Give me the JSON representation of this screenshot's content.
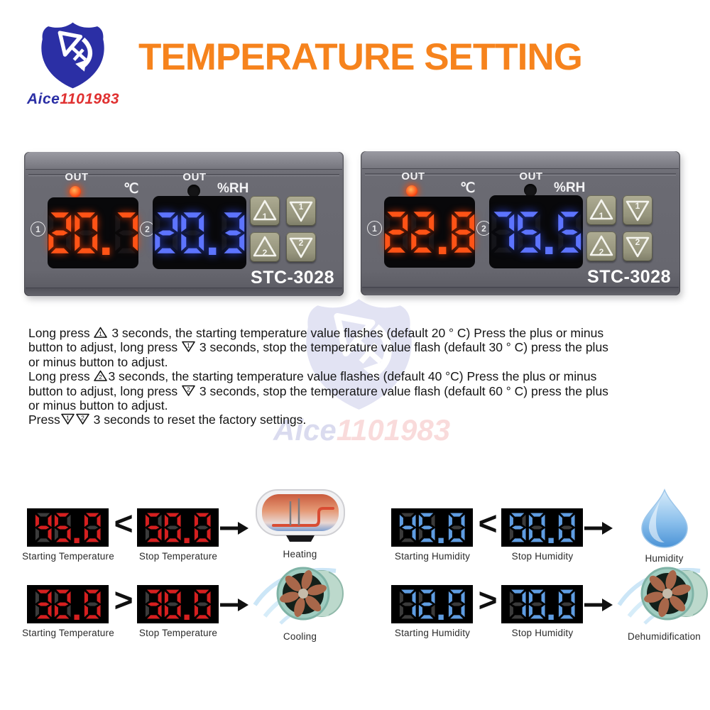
{
  "brand": {
    "name_blue": "Aice",
    "name_red": "1101983"
  },
  "title": "TEMPERATURE SETTING",
  "devices": [
    {
      "out1": "OUT",
      "out2": "OUT",
      "celsius": "℃",
      "rh": "%RH",
      "ch1": "1",
      "ch2": "2",
      "temperature": "20.7",
      "humidity": "20.3",
      "model": "STC-3028",
      "buttons": [
        {
          "dir": "up",
          "num": "1"
        },
        {
          "dir": "down",
          "num": "1"
        },
        {
          "dir": "up",
          "num": "2"
        },
        {
          "dir": "down",
          "num": "2"
        }
      ]
    },
    {
      "out1": "OUT",
      "out2": "OUT",
      "celsius": "℃",
      "rh": "%RH",
      "ch1": "1",
      "ch2": "2",
      "temperature": "22.8",
      "humidity": "75.5",
      "model": "STC-3028",
      "buttons": [
        {
          "dir": "up",
          "num": "1"
        },
        {
          "dir": "down",
          "num": "1"
        },
        {
          "dir": "up",
          "num": "2"
        },
        {
          "dir": "down",
          "num": "2"
        }
      ]
    }
  ],
  "instructions": {
    "lines": [
      "Long press [u1] 3 seconds, the starting temperature value flashes (default 20 ° C) Press the plus or minus",
      "button to adjust, long press [d1] 3 seconds, stop the temperature value flash (default 30 ° C) press the plus",
      "or minus button to adjust.",
      "Long press [u2]3 seconds, the starting temperature value flashes (default 40 °C) Press the plus or minus",
      "button to adjust, long press [d2] 3 seconds, stop the temperature value flash (default 60 ° C) press the plus",
      "or minus button to adjust.",
      "Press[d1][d2] 3 seconds to reset the factory settings."
    ]
  },
  "diagrams": [
    {
      "value1": "45.0",
      "label1": "Starting Temperature",
      "comparator": "<",
      "value2": "50.0",
      "label2": "Stop Temperature",
      "result": "Heating",
      "icon": "heater"
    },
    {
      "value1": "32.0",
      "label1": "Starting Temperature",
      "comparator": ">",
      "value2": "30.0",
      "label2": "Stop Temperature",
      "result": "Cooling",
      "icon": "fan"
    },
    {
      "value1": "45.0",
      "label1": "Starting Humidity",
      "comparator": "<",
      "value2": "50.0",
      "label2": "Stop Humidity",
      "result": "Humidity",
      "icon": "droplet"
    },
    {
      "value1": "72.0",
      "label1": "Starting Humidity",
      "comparator": ">",
      "value2": "70.0",
      "label2": "Stop Humidity",
      "result": "Dehumidification",
      "icon": "fan"
    }
  ],
  "colors": {
    "title_orange": "#f6831d",
    "device_body": "#6b6b73",
    "button_khaki": "#9c9b84",
    "digit_red_glow": "#ff5316",
    "digit_blue_glow": "#5d74ff",
    "segment_red": "#d61f1f",
    "segment_blue": "#5f9de2",
    "logo_blue": "#2b2fa5",
    "logo_red": "#e03131"
  }
}
